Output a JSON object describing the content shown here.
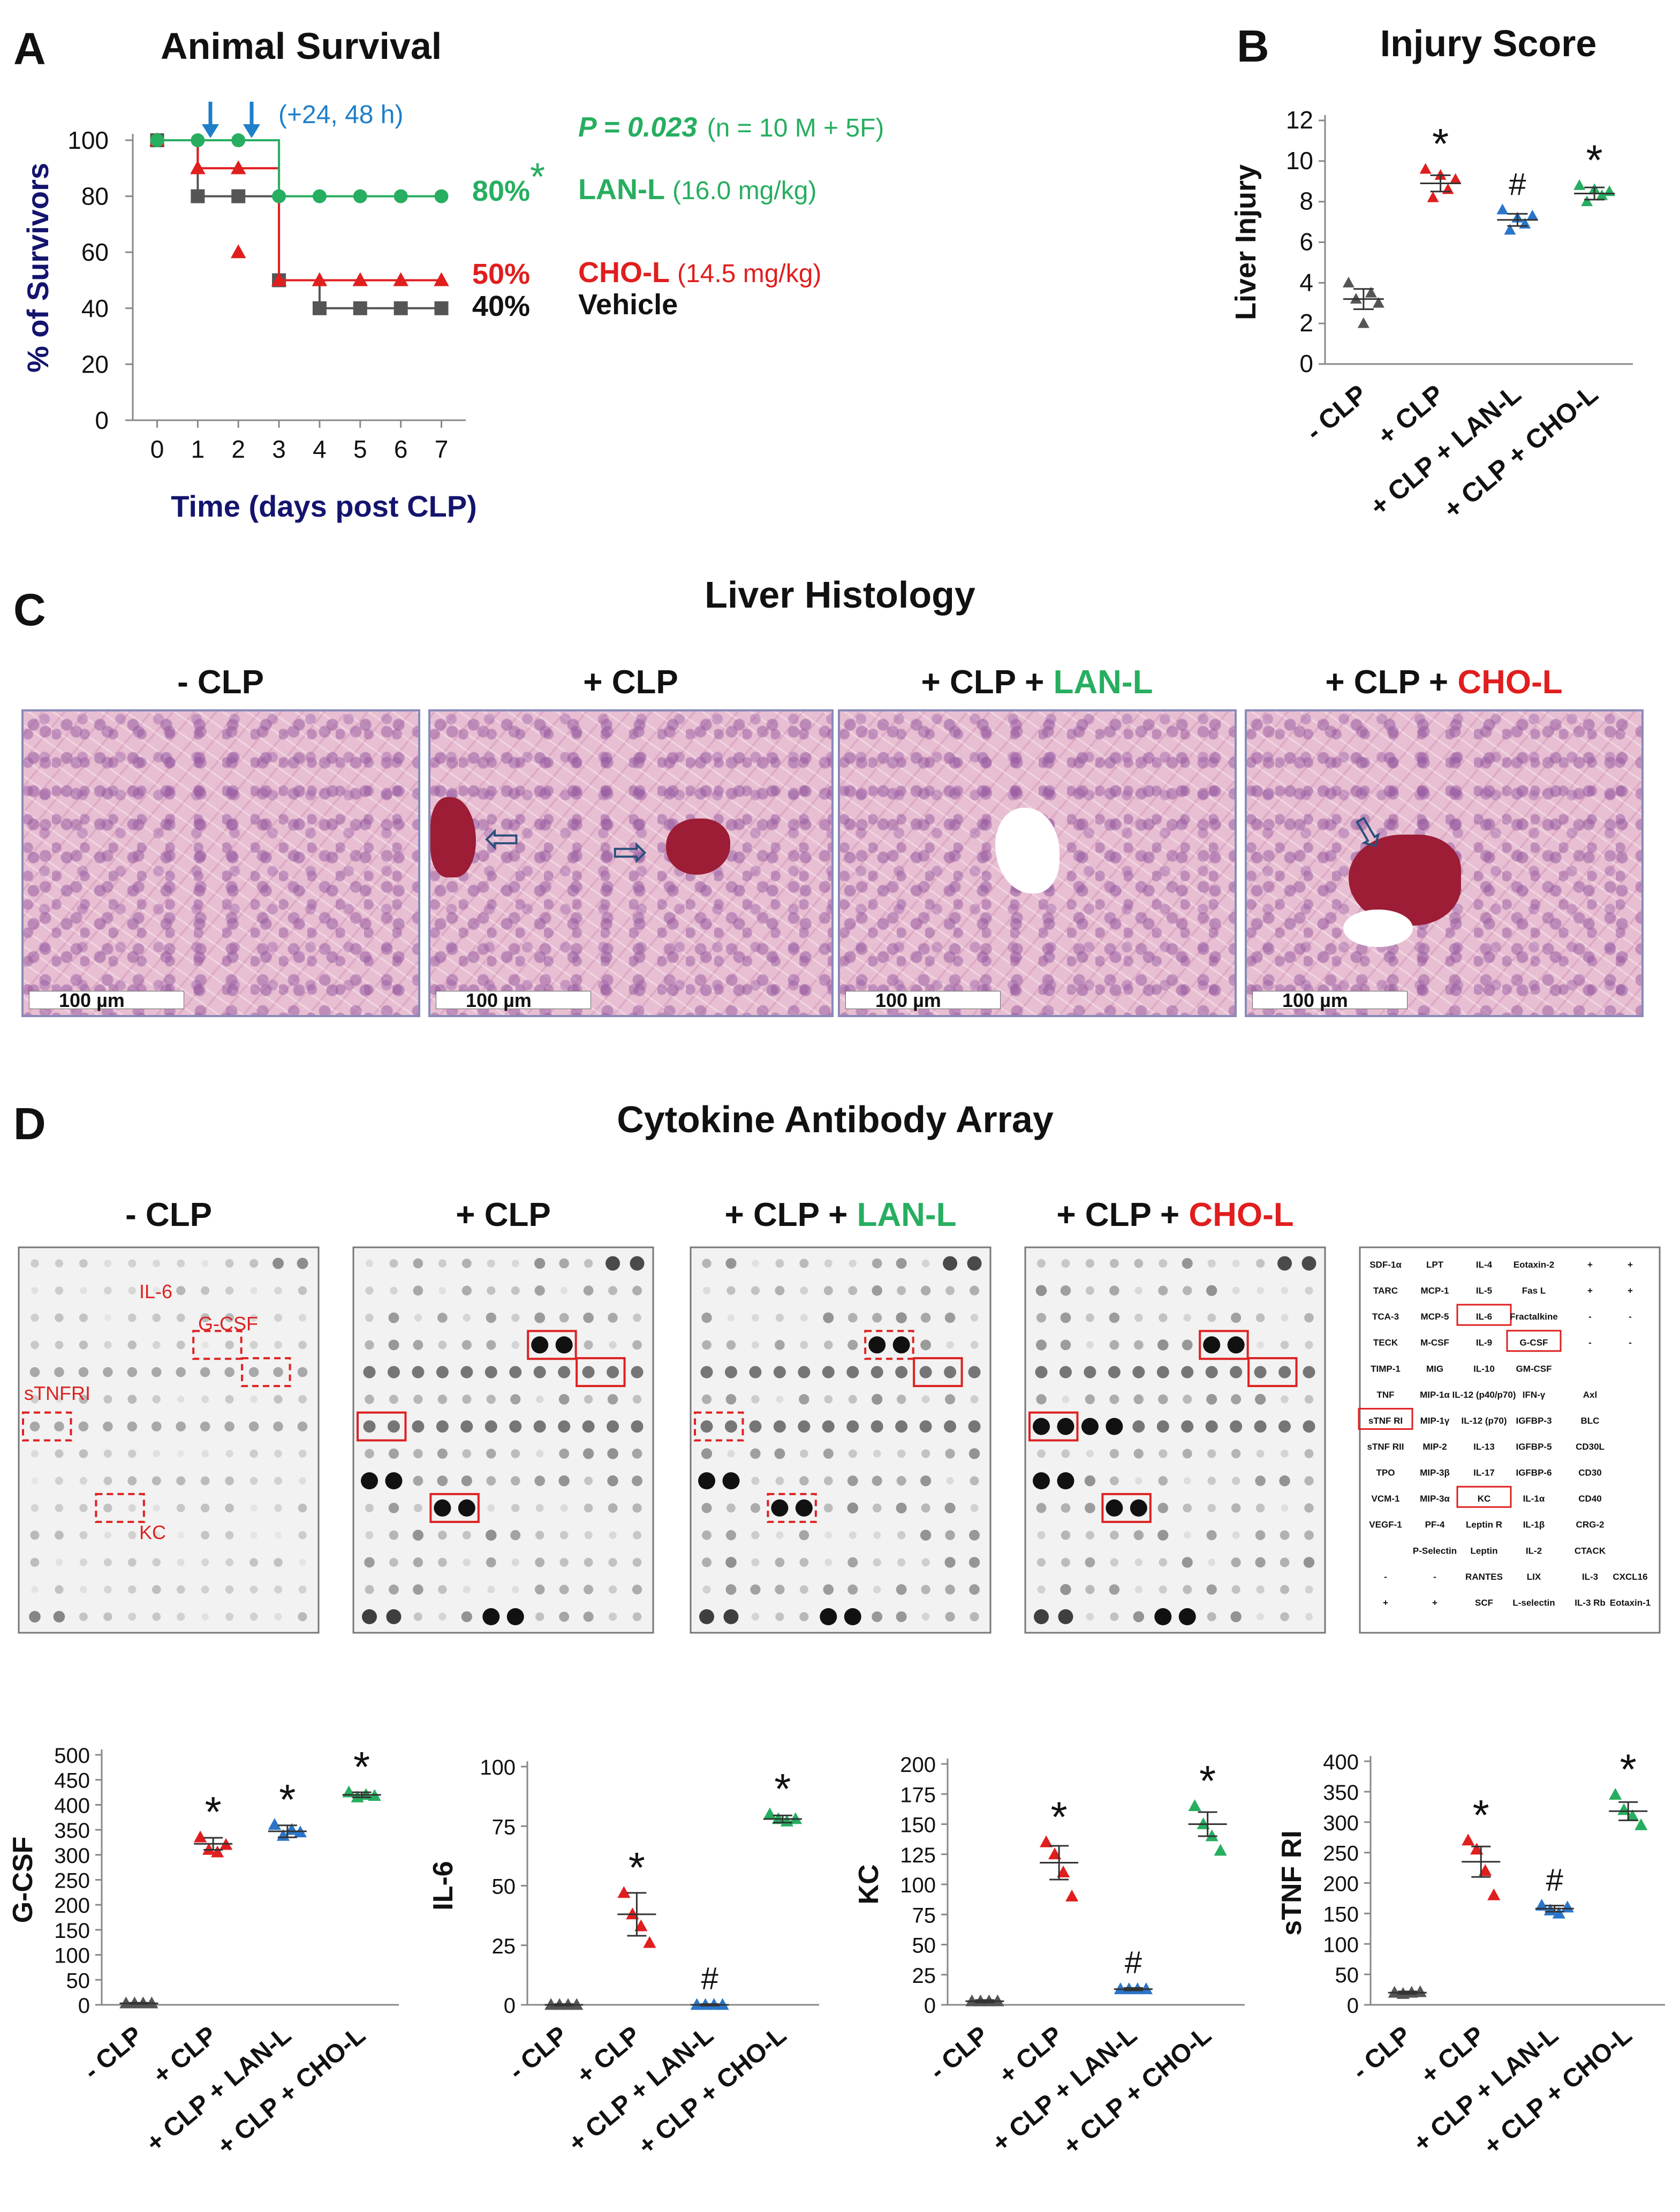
{
  "panel_letters": {
    "a": "A",
    "b": "B",
    "c": "C",
    "d": "D"
  },
  "colors": {
    "green": "#27ae60",
    "red": "#e01e1e",
    "blue": "#2a75c9",
    "gray": "#555555",
    "navy": "#14146e",
    "arrow_blue": "#1f7fc9"
  },
  "chart_data": [
    {
      "id": "A",
      "type": "line",
      "title": "Animal Survival",
      "xlabel": "Time (days post CLP)",
      "ylabel": "% of Survivors",
      "x": [
        0,
        1,
        2,
        3,
        4,
        5,
        6,
        7
      ],
      "xlim": [
        -0.6,
        7.6
      ],
      "ylim": [
        0,
        100
      ],
      "xticks": [
        "0",
        "1",
        "2",
        "3",
        "4",
        "5",
        "6",
        "7"
      ],
      "yticks": [
        "0",
        "20",
        "40",
        "60",
        "80",
        "100"
      ],
      "series": [
        {
          "name": "LAN-L",
          "dose": "(16.0 mg/kg)",
          "color": "#27ae60",
          "marker": "circle",
          "end_label": "80%",
          "star": "*",
          "values": [
            100,
            100,
            100,
            80,
            80,
            80,
            80,
            80
          ],
          "drop_at": 2
        },
        {
          "name": "CHO-L",
          "dose": "(14.5 mg/kg)",
          "color": "#e01e1e",
          "marker": "triangle",
          "end_label": "50%",
          "values": [
            100,
            90,
            90,
            50,
            50,
            50,
            50,
            50
          ],
          "drop_points": [
            [
              2,
              60
            ]
          ]
        },
        {
          "name": "Vehicle",
          "dose": "",
          "color": "#555555",
          "marker": "square",
          "end_label": "40%",
          "values": [
            100,
            80,
            80,
            50,
            40,
            40,
            40,
            40
          ]
        }
      ],
      "arrow_note": "(+24, 48 h)",
      "p_label": "P = 0.023",
      "n_label": "(n = 10 M + 5F)"
    },
    {
      "id": "B",
      "type": "scatter",
      "title": "Injury Score",
      "ylabel": "Liver Injury",
      "ylim": [
        0,
        12
      ],
      "yticks": [
        "0",
        "2",
        "4",
        "6",
        "8",
        "10",
        "12"
      ],
      "categories": [
        "- CLP",
        "+ CLP",
        "+ CLP + LAN-L",
        "+ CLP + CHO-L"
      ],
      "marker_colors": [
        "#555555",
        "#e01e1e",
        "#2a75c9",
        "#27ae60"
      ],
      "means": [
        3.2,
        8.9,
        7.1,
        8.4
      ],
      "sems": [
        0.5,
        0.4,
        0.3,
        0.3
      ],
      "points": [
        [
          4,
          3.2,
          2,
          3.5,
          3.0
        ],
        [
          9.6,
          8.2,
          9.3,
          8.6,
          9.1
        ],
        [
          7.6,
          6.6,
          7.2,
          6.9,
          7.3
        ],
        [
          8.8,
          8.0,
          8.6,
          8.3,
          8.5
        ]
      ],
      "annotations": [
        "",
        "*",
        "#",
        "*"
      ]
    },
    {
      "id": "D1",
      "type": "scatter",
      "ylabel": "G-CSF",
      "ylim": [
        0,
        500
      ],
      "yticks": [
        "0",
        "50",
        "100",
        "150",
        "200",
        "250",
        "300",
        "350",
        "400",
        "450",
        "500"
      ],
      "categories": [
        "- CLP",
        "+ CLP",
        "+ CLP + LAN-L",
        "+ CLP + CHO-L"
      ],
      "marker_colors": [
        "#555555",
        "#e01e1e",
        "#2a75c9",
        "#27ae60"
      ],
      "means": [
        3,
        322,
        347,
        420
      ],
      "sems": [
        1,
        12,
        12,
        5
      ],
      "points": [
        [
          3,
          3,
          3,
          3
        ],
        [
          335,
          310,
          305,
          320
        ],
        [
          360,
          338,
          350,
          345
        ],
        [
          425,
          415,
          420,
          418
        ]
      ],
      "annotations": [
        "",
        "*",
        "*",
        "*"
      ]
    },
    {
      "id": "D2",
      "type": "scatter",
      "ylabel": "IL-6",
      "ylim": [
        0,
        100
      ],
      "yticks": [
        "0",
        "25",
        "50",
        "75",
        "100"
      ],
      "categories": [
        "- CLP",
        "+ CLP",
        "+ CLP + LAN-L",
        "+ CLP + CHO-L"
      ],
      "marker_colors": [
        "#555555",
        "#e01e1e",
        "#2a75c9",
        "#27ae60"
      ],
      "means": [
        0,
        38,
        0,
        78
      ],
      "sems": [
        0.3,
        9,
        0.3,
        1.5
      ],
      "points": [
        [
          0,
          0,
          0,
          0
        ],
        [
          47,
          38,
          33,
          26
        ],
        [
          0,
          0,
          0,
          0
        ],
        [
          80,
          78,
          77,
          78
        ]
      ],
      "annotations": [
        "",
        "*",
        "#",
        "*"
      ]
    },
    {
      "id": "D3",
      "type": "scatter",
      "ylabel": "KC",
      "ylim": [
        0,
        200
      ],
      "yticks": [
        "0",
        "25",
        "50",
        "75",
        "100",
        "125",
        "150",
        "175",
        "200"
      ],
      "categories": [
        "- CLP",
        "+ CLP",
        "+ CLP + LAN-L",
        "+ CLP + CHO-L"
      ],
      "marker_colors": [
        "#555555",
        "#e01e1e",
        "#2a75c9",
        "#27ae60"
      ],
      "means": [
        3,
        118,
        13,
        150
      ],
      "sems": [
        1,
        14,
        1,
        10
      ],
      "points": [
        [
          3,
          3,
          3,
          3
        ],
        [
          135,
          125,
          110,
          90
        ],
        [
          13,
          13,
          13,
          13
        ],
        [
          165,
          150,
          140,
          128
        ]
      ],
      "annotations": [
        "",
        "*",
        "#",
        "*"
      ]
    },
    {
      "id": "D4",
      "type": "scatter",
      "ylabel": "sTNF RI",
      "ylim": [
        0,
        400
      ],
      "yticks": [
        "0",
        "50",
        "100",
        "150",
        "200",
        "250",
        "300",
        "350",
        "400"
      ],
      "categories": [
        "- CLP",
        "+ CLP",
        "+ CLP + LAN-L",
        "+ CLP + CHO-L"
      ],
      "marker_colors": [
        "#555555",
        "#e01e1e",
        "#2a75c9",
        "#27ae60"
      ],
      "means": [
        20,
        235,
        158,
        318
      ],
      "sems": [
        2,
        25,
        5,
        15
      ],
      "points": [
        [
          20,
          18,
          20,
          21
        ],
        [
          270,
          255,
          220,
          180
        ],
        [
          163,
          155,
          150,
          160
        ],
        [
          345,
          320,
          310,
          295
        ]
      ],
      "annotations": [
        "",
        "*",
        "#",
        "*"
      ]
    }
  ],
  "histology": {
    "title": "Liver Histology",
    "panels": [
      {
        "prefix": "- CLP",
        "highlight": "",
        "scale": "100 µm"
      },
      {
        "prefix": "+ CLP",
        "highlight": "",
        "scale": "100 µm"
      },
      {
        "prefix": "+ CLP + ",
        "highlight": "LAN-L",
        "scale": "100 µm"
      },
      {
        "prefix": "+ CLP + ",
        "highlight": "CHO-L",
        "scale": "100 µm"
      }
    ]
  },
  "array": {
    "title": "Cytokine Antibody Array",
    "panels": [
      {
        "prefix": "- CLP",
        "highlight": ""
      },
      {
        "prefix": "+ CLP",
        "highlight": ""
      },
      {
        "prefix": "+ CLP + ",
        "highlight": "LAN-L"
      },
      {
        "prefix": "+ CLP + ",
        "highlight": "CHO-L"
      }
    ],
    "spot_labels": [
      "IL-6",
      "G-CSF",
      "sTNFRI",
      "KC"
    ],
    "key": [
      [
        "SDF-1α",
        "LPT",
        "IL-4",
        "Eotaxin-2",
        "+",
        "+"
      ],
      [
        "TARC",
        "MCP-1",
        "IL-5",
        "Fas L",
        "+",
        "+"
      ],
      [
        "TCA-3",
        "MCP-5",
        "IL-6",
        "Fractalkine",
        "-",
        "-"
      ],
      [
        "TECK",
        "M-CSF",
        "IL-9",
        "G-CSF",
        "-",
        "-"
      ],
      [
        "TIMP-1",
        "MIG",
        "IL-10",
        "GM-CSF",
        "",
        ""
      ],
      [
        "TNF",
        "MIP-1α",
        "IL-12 (p40/p70)",
        "IFN-γ",
        "Axl",
        ""
      ],
      [
        "sTNF RI",
        "MIP-1γ",
        "IL-12 (p70)",
        "IGFBP-3",
        "BLC",
        ""
      ],
      [
        "sTNF RII",
        "MIP-2",
        "IL-13",
        "IGFBP-5",
        "CD30L",
        ""
      ],
      [
        "TPO",
        "MIP-3β",
        "IL-17",
        "IGFBP-6",
        "CD30",
        ""
      ],
      [
        "VCM-1",
        "MIP-3α",
        "KC",
        "IL-1α",
        "CD40",
        ""
      ],
      [
        "VEGF-1",
        "PF-4",
        "Leptin R",
        "IL-1β",
        "CRG-2",
        ""
      ],
      [
        "",
        "P-Selectin",
        "Leptin",
        "IL-2",
        "CTACK",
        ""
      ],
      [
        "-",
        "-",
        "RANTES",
        "LIX",
        "IL-3",
        "CXCL16"
      ],
      [
        "+",
        "+",
        "SCF",
        "L-selectin",
        "IL-3 Rb",
        "Eotaxin-1"
      ]
    ]
  }
}
